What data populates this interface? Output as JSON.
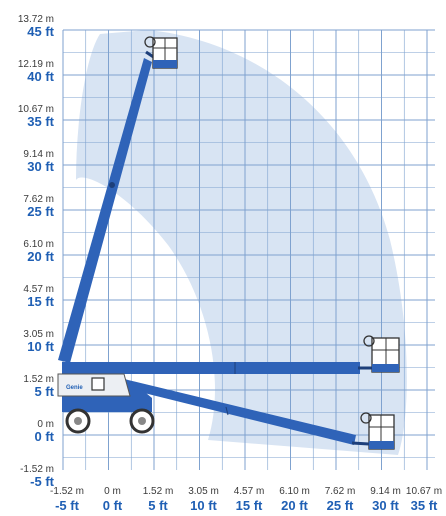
{
  "chart_data": {
    "type": "working-envelope",
    "x_axis": {
      "meters": [
        "-1.52 m",
        "0 m",
        "1.52 m",
        "3.05 m",
        "4.57 m",
        "6.10 m",
        "7.62 m",
        "9.14 m",
        "10.67 m"
      ],
      "feet": [
        "-5 ft",
        "0 ft",
        "5 ft",
        "10 ft",
        "15 ft",
        "20 ft",
        "25 ft",
        "30 ft",
        "35 ft"
      ],
      "range_ft": [
        -5,
        35
      ]
    },
    "y_axis": {
      "meters": [
        "13.72 m",
        "12.19 m",
        "10.67 m",
        "9.14 m",
        "7.62 m",
        "6.10 m",
        "4.57 m",
        "3.05 m",
        "1.52 m",
        "0 m",
        "-1.52 m"
      ],
      "feet": [
        "45 ft",
        "40 ft",
        "35 ft",
        "30 ft",
        "25 ft",
        "20 ft",
        "15 ft",
        "10 ft",
        "5 ft",
        "0 ft",
        "-5 ft"
      ],
      "range_ft": [
        -5,
        45
      ]
    },
    "machine_label": "Genie",
    "colors": {
      "grid": "#7fa2cf",
      "envelope": "#d8e4f3",
      "boom": "#2f63b8",
      "feet_text": "#1f5fb4",
      "meters_text": "#3b3b3b"
    }
  }
}
